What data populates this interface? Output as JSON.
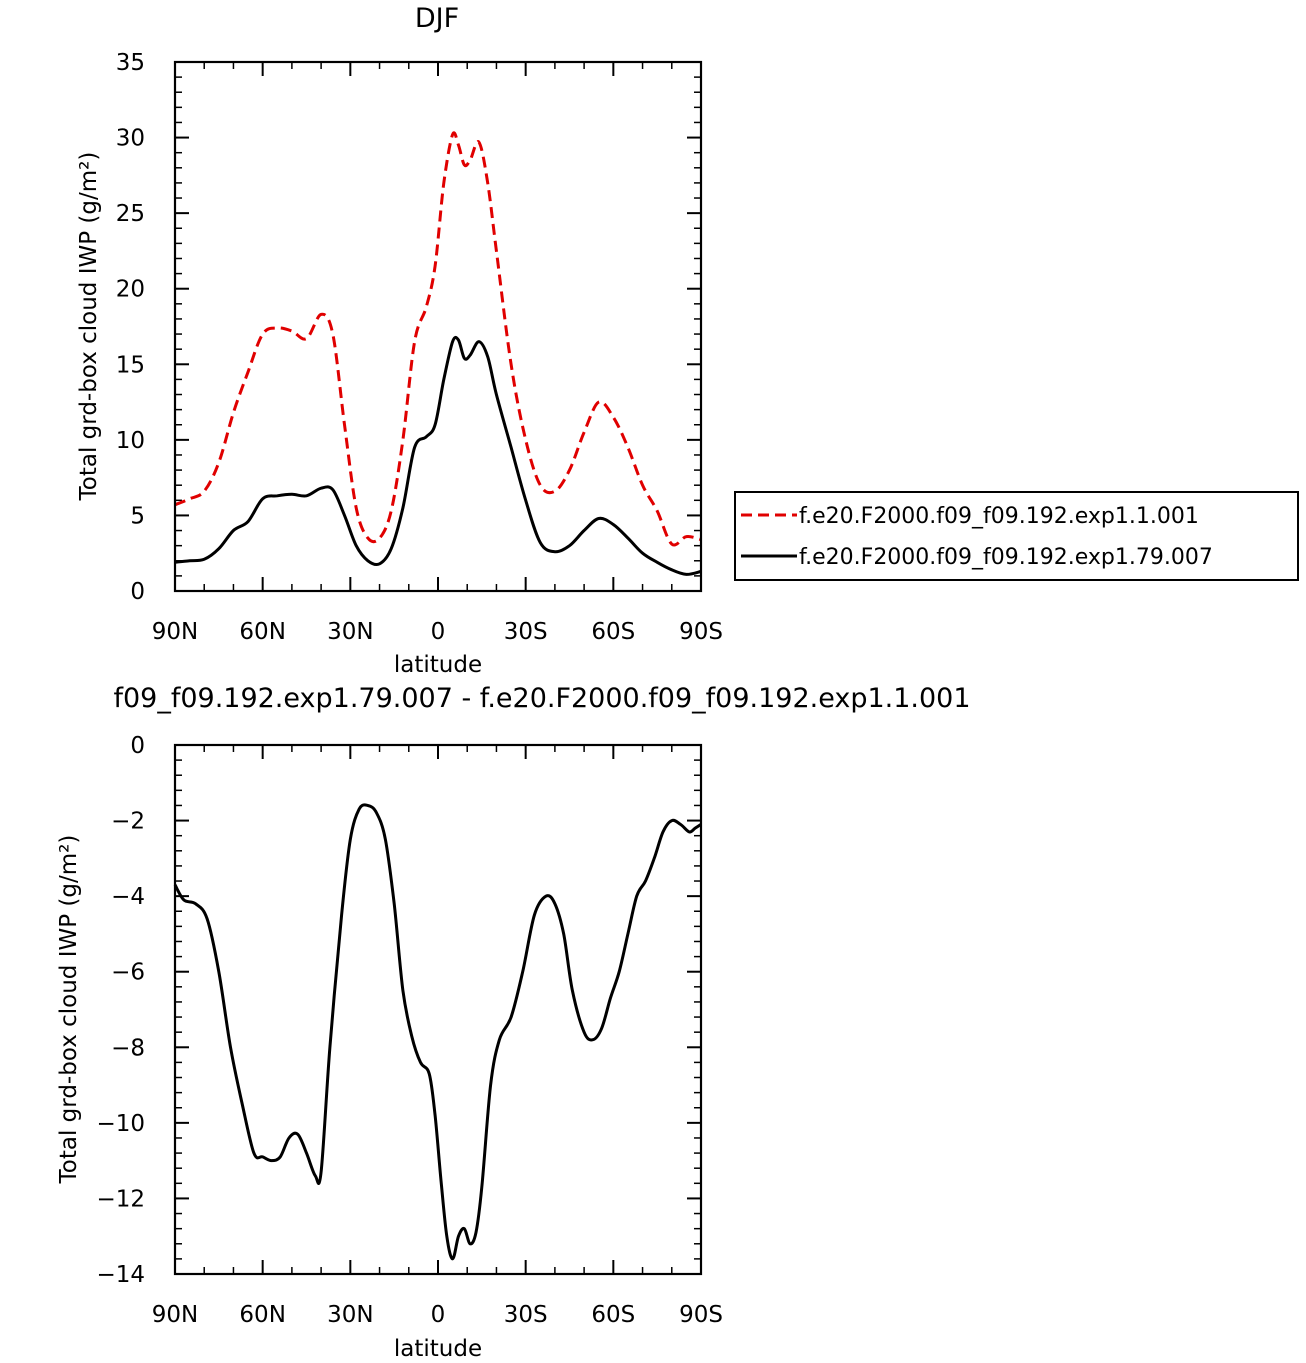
{
  "chart_data": [
    {
      "type": "line",
      "title": "DJF",
      "xlabel": "latitude",
      "ylabel": "Total grd-box cloud IWP (g/m²)",
      "x_tick_labels": [
        "90N",
        "60N",
        "30N",
        "0",
        "30S",
        "60S",
        "90S"
      ],
      "x_tick_values": [
        -90,
        -60,
        -30,
        0,
        30,
        60,
        90
      ],
      "xlim": [
        -90,
        90
      ],
      "ylim": [
        0,
        35
      ],
      "y_ticks": [
        0,
        5,
        10,
        15,
        20,
        25,
        30,
        35
      ],
      "legend_position": "right",
      "series": [
        {
          "name": "f.e20.F2000.f09_f09.192.exp1.1.001",
          "color": "#e00000",
          "dash": "dashed",
          "x": [
            -90,
            -85,
            -80,
            -75,
            -70,
            -65,
            -60,
            -55,
            -50,
            -45,
            -40,
            -36,
            -32,
            -28,
            -24,
            -20,
            -16,
            -12,
            -8,
            -4,
            -1,
            2,
            5,
            7,
            9,
            11,
            14,
            17,
            20,
            25,
            30,
            35,
            40,
            45,
            50,
            55,
            60,
            65,
            70,
            75,
            80,
            85,
            90
          ],
          "values": [
            5.7,
            6.1,
            6.6,
            8.5,
            11.8,
            14.5,
            17.0,
            17.4,
            17.2,
            16.7,
            18.3,
            17.0,
            11.0,
            5.5,
            3.5,
            3.5,
            5.3,
            10.0,
            16.5,
            18.8,
            21.5,
            27.0,
            30.2,
            29.5,
            28.2,
            28.5,
            29.7,
            27.0,
            22.5,
            15.0,
            10.0,
            7.0,
            6.6,
            8.0,
            10.5,
            12.5,
            11.5,
            9.5,
            7.0,
            5.3,
            3.1,
            3.6,
            3.4
          ]
        },
        {
          "name": "f.e20.F2000.f09_f09.192.exp1.79.007",
          "color": "#000000",
          "dash": "solid",
          "x": [
            -90,
            -85,
            -80,
            -75,
            -70,
            -65,
            -60,
            -55,
            -50,
            -45,
            -40,
            -36,
            -32,
            -28,
            -24,
            -20,
            -16,
            -12,
            -8,
            -4,
            -1,
            2,
            5,
            7,
            9,
            11,
            14,
            17,
            20,
            25,
            30,
            35,
            40,
            45,
            50,
            55,
            60,
            65,
            70,
            75,
            80,
            85,
            90
          ],
          "values": [
            1.9,
            2.0,
            2.1,
            2.8,
            4.0,
            4.6,
            6.1,
            6.3,
            6.4,
            6.3,
            6.8,
            6.7,
            5.0,
            3.0,
            2.0,
            1.8,
            2.8,
            5.5,
            9.5,
            10.2,
            11.0,
            14.0,
            16.5,
            16.6,
            15.4,
            15.6,
            16.5,
            15.5,
            13.0,
            9.5,
            6.0,
            3.2,
            2.6,
            3.0,
            4.0,
            4.8,
            4.4,
            3.5,
            2.5,
            1.9,
            1.4,
            1.1,
            1.3
          ]
        }
      ]
    },
    {
      "type": "line",
      "title": "f09_f09.192.exp1.79.007 - f.e20.F2000.f09_f09.192.exp1.1.001",
      "xlabel": "latitude",
      "ylabel": "Total grd-box cloud IWP (g/m²)",
      "x_tick_labels": [
        "90N",
        "60N",
        "30N",
        "0",
        "30S",
        "60S",
        "90S"
      ],
      "x_tick_values": [
        -90,
        -60,
        -30,
        0,
        30,
        60,
        90
      ],
      "xlim": [
        -90,
        90
      ],
      "ylim": [
        -14,
        0
      ],
      "y_ticks": [
        -14,
        -12,
        -10,
        -8,
        -6,
        -4,
        -2,
        0
      ],
      "series": [
        {
          "color": "#000000",
          "dash": "solid",
          "x": [
            -90,
            -87,
            -83,
            -79,
            -75,
            -71,
            -67,
            -63,
            -60,
            -57,
            -54,
            -51,
            -48,
            -45,
            -42,
            -40,
            -37,
            -33,
            -30,
            -27,
            -24,
            -21,
            -18,
            -15,
            -12,
            -9,
            -6,
            -3,
            -1,
            1,
            3,
            5,
            7,
            9,
            11,
            13,
            15,
            18,
            21,
            25,
            29,
            33,
            37,
            40,
            43,
            46,
            50,
            53,
            56,
            59,
            62,
            65,
            68,
            71,
            74,
            77,
            80,
            83,
            86,
            88,
            90
          ],
          "values": [
            -3.7,
            -4.1,
            -4.2,
            -4.6,
            -6.0,
            -8.0,
            -9.5,
            -10.8,
            -10.9,
            -11.0,
            -10.9,
            -10.4,
            -10.3,
            -10.8,
            -11.4,
            -11.3,
            -8.0,
            -4.5,
            -2.5,
            -1.7,
            -1.6,
            -1.8,
            -2.5,
            -4.2,
            -6.5,
            -7.7,
            -8.4,
            -8.7,
            -9.8,
            -11.5,
            -13.0,
            -13.6,
            -13.0,
            -12.8,
            -13.2,
            -12.9,
            -11.7,
            -9.0,
            -7.8,
            -7.2,
            -6.0,
            -4.5,
            -4.0,
            -4.2,
            -5.0,
            -6.5,
            -7.6,
            -7.8,
            -7.5,
            -6.7,
            -6.0,
            -5.0,
            -4.0,
            -3.6,
            -3.0,
            -2.3,
            -2.0,
            -2.1,
            -2.3,
            -2.2,
            -2.1
          ]
        }
      ]
    }
  ]
}
